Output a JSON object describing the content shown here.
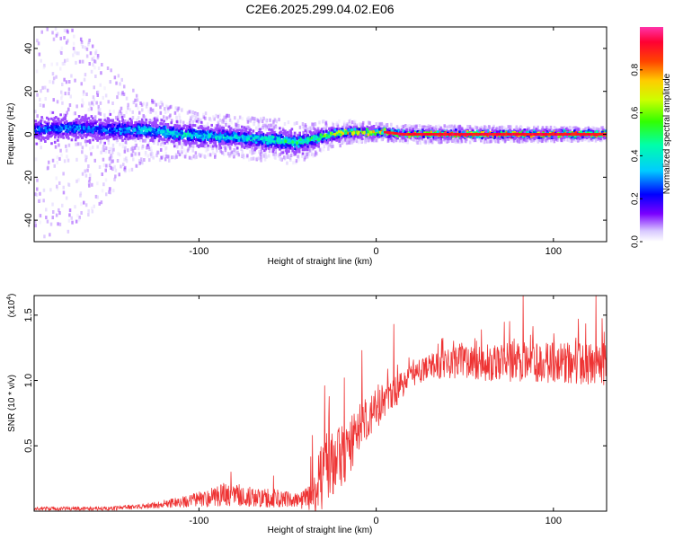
{
  "figure": {
    "title": "C2E6.2025.299.04.02.E06"
  },
  "colors": {
    "signal": "#ee3333",
    "axis": "#000000",
    "background": "#ffffff"
  },
  "chart_data": [
    {
      "type": "heatmap",
      "name": "spectrogram",
      "xlabel": "Height of straight line (km)",
      "ylabel": "Frequency (Hz)",
      "xlim": [
        -193,
        130
      ],
      "ylim": [
        -50,
        50
      ],
      "x_ticks": [
        -100,
        0,
        100
      ],
      "x_tick_labels": [
        "-100",
        "0",
        "100"
      ],
      "y_ticks": [
        -40,
        -20,
        0,
        20,
        40
      ],
      "y_tick_labels": [
        "-40",
        "-20",
        "0",
        "20",
        "40"
      ],
      "colorbar": {
        "label": "Normalized spectral amplitude",
        "range": [
          0,
          1
        ],
        "ticks": [
          0.0,
          0.2,
          0.4,
          0.6,
          0.8
        ],
        "tick_labels": [
          "0.0",
          "0.2",
          "0.4",
          "0.6",
          "0.8"
        ]
      },
      "band_profile": {
        "x": [
          -193,
          -170,
          -150,
          -130,
          -110,
          -90,
          -70,
          -55,
          -45,
          -35,
          -25,
          -15,
          -5,
          5,
          15,
          30,
          60,
          90,
          130
        ],
        "center_hz": [
          2,
          3,
          2,
          2,
          0,
          -1,
          -2,
          -3,
          -4,
          -2,
          0,
          1,
          1,
          1,
          0,
          0,
          0,
          0,
          0
        ],
        "halfwidth_hz": [
          5,
          5,
          5,
          4.5,
          4.5,
          4,
          4,
          4.5,
          4.5,
          3.5,
          2.5,
          2,
          2,
          2,
          1.5,
          1.5,
          1.5,
          1.5,
          1.5
        ],
        "peak_amplitude": [
          0.3,
          0.32,
          0.3,
          0.38,
          0.45,
          0.42,
          0.45,
          0.5,
          0.48,
          0.55,
          0.7,
          0.8,
          0.75,
          0.8,
          0.9,
          0.95,
          0.95,
          0.95,
          0.95
        ]
      },
      "noise_profile": {
        "x": [
          -193,
          -180,
          -170,
          -160,
          -150,
          -140,
          -130,
          -110,
          -90,
          -70,
          -50,
          -35,
          -20,
          0,
          30,
          130
        ],
        "spread_hz": [
          50,
          50,
          50,
          40,
          30,
          20,
          15,
          12,
          10,
          10,
          10,
          8,
          6,
          4,
          4,
          3
        ]
      }
    },
    {
      "type": "line",
      "name": "snr",
      "xlabel": "Height of straight line (km)",
      "ylabel": "SNR (10 * v/v)",
      "y_scale_label": "(x10",
      "y_scale_exponent": "4",
      "xlim": [
        -193,
        130
      ],
      "ylim": [
        0,
        1.65
      ],
      "x_ticks": [
        -100,
        0,
        100
      ],
      "x_tick_labels": [
        "-100",
        "0",
        "100"
      ],
      "y_ticks": [
        0.5,
        1.0,
        1.5
      ],
      "y_tick_labels": [
        "0.5",
        "1.0",
        "1.5"
      ],
      "series": [
        {
          "name": "SNR",
          "trend_x": [
            -193,
            -150,
            -130,
            -110,
            -95,
            -85,
            -75,
            -65,
            -55,
            -45,
            -38,
            -34,
            -30,
            -27,
            -24,
            -20,
            -15,
            -10,
            -5,
            0,
            5,
            10,
            15,
            20,
            30,
            40,
            60,
            80,
            100,
            120,
            130
          ],
          "trend_y": [
            0.02,
            0.02,
            0.04,
            0.07,
            0.1,
            0.13,
            0.12,
            0.1,
            0.1,
            0.08,
            0.1,
            0.2,
            0.3,
            0.36,
            0.38,
            0.42,
            0.5,
            0.62,
            0.7,
            0.78,
            0.85,
            0.9,
            0.97,
            1.03,
            1.12,
            1.13,
            1.14,
            1.15,
            1.14,
            1.13,
            1.12
          ],
          "amp_y": [
            0.015,
            0.015,
            0.02,
            0.04,
            0.07,
            0.09,
            0.08,
            0.07,
            0.07,
            0.05,
            0.1,
            0.25,
            0.3,
            0.3,
            0.28,
            0.25,
            0.22,
            0.2,
            0.17,
            0.15,
            0.13,
            0.12,
            0.1,
            0.09,
            0.1,
            0.12,
            0.14,
            0.16,
            0.16,
            0.16,
            0.16
          ],
          "spikes_x": [
            -82,
            -58,
            -36,
            -29,
            -18,
            -8,
            10,
            83,
            124
          ],
          "spikes_y": [
            0.3,
            0.27,
            0.58,
            0.96,
            1.02,
            1.23,
            1.43,
            1.66,
            1.66
          ]
        }
      ]
    }
  ]
}
